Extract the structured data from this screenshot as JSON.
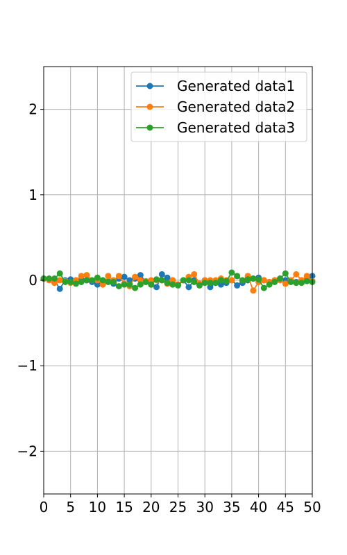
{
  "chart_data": {
    "type": "line",
    "title": "",
    "xlabel": "",
    "ylabel": "",
    "xlim": [
      0,
      50
    ],
    "ylim": [
      -2.5,
      2.5
    ],
    "xticks": [
      0,
      5,
      10,
      15,
      20,
      25,
      30,
      35,
      40,
      45,
      50
    ],
    "xtick_labels": [
      "0",
      "5",
      "10",
      "15",
      "20",
      "25",
      "30",
      "35",
      "40",
      "45",
      "50"
    ],
    "yticks": [
      -2,
      -1,
      0,
      1,
      2
    ],
    "ytick_labels": [
      "−2",
      "−1",
      "0",
      "1",
      "2"
    ],
    "grid": true,
    "legend_position": "top-right",
    "x": [
      0,
      1,
      2,
      3,
      4,
      5,
      6,
      7,
      8,
      9,
      10,
      11,
      12,
      13,
      14,
      15,
      16,
      17,
      18,
      19,
      20,
      21,
      22,
      23,
      24,
      25,
      26,
      27,
      28,
      29,
      30,
      31,
      32,
      33,
      34,
      35,
      36,
      37,
      38,
      39,
      40,
      41,
      42,
      43,
      44,
      45,
      46,
      47,
      48,
      49,
      50
    ],
    "series": [
      {
        "name": "Generated data1",
        "color": "#1f77b4",
        "values": [
          0.02,
          0.01,
          0.0,
          -0.1,
          0.0,
          0.01,
          0.0,
          0.01,
          0.0,
          -0.02,
          -0.05,
          0.0,
          -0.01,
          -0.04,
          0.02,
          0.04,
          0.0,
          0.02,
          0.06,
          -0.02,
          -0.05,
          -0.08,
          0.07,
          0.03,
          0.0,
          -0.05,
          0.0,
          -0.08,
          0.0,
          -0.05,
          0.0,
          -0.08,
          -0.03,
          -0.05,
          -0.03,
          0.0,
          -0.06,
          -0.03,
          0.0,
          0.02,
          0.03,
          0.0,
          -0.02,
          0.0,
          0.02,
          0.0,
          -0.01,
          -0.02,
          0.0,
          0.0,
          0.05
        ]
      },
      {
        "name": "Generated data2",
        "color": "#ff7f0e",
        "values": [
          0.02,
          0.0,
          -0.03,
          0.0,
          -0.01,
          -0.03,
          0.0,
          0.05,
          0.06,
          0.0,
          0.0,
          -0.05,
          0.05,
          0.0,
          0.05,
          -0.04,
          -0.07,
          0.04,
          0.0,
          -0.01,
          0.0,
          0.0,
          0.0,
          -0.04,
          0.0,
          -0.05,
          0.0,
          0.04,
          0.07,
          -0.04,
          0.0,
          0.0,
          0.0,
          0.02,
          0.0,
          0.0,
          0.05,
          0.0,
          0.05,
          -0.12,
          -0.02,
          0.0,
          -0.02,
          0.0,
          0.0,
          -0.04,
          0.0,
          0.07,
          0.0,
          0.05,
          -0.01
        ]
      },
      {
        "name": "Generated data3",
        "color": "#2ca02c",
        "values": [
          0.02,
          0.02,
          0.02,
          0.08,
          -0.02,
          -0.02,
          -0.04,
          -0.02,
          0.0,
          0.0,
          0.03,
          0.0,
          -0.02,
          -0.02,
          -0.07,
          -0.05,
          -0.05,
          -0.09,
          -0.05,
          -0.02,
          -0.05,
          0.01,
          0.0,
          -0.03,
          -0.05,
          -0.06,
          0.0,
          0.0,
          -0.02,
          -0.06,
          -0.03,
          -0.03,
          -0.03,
          0.0,
          -0.01,
          0.09,
          0.05,
          0.0,
          0.01,
          0.02,
          0.01,
          -0.09,
          -0.05,
          -0.02,
          0.02,
          0.08,
          -0.02,
          -0.03,
          -0.03,
          -0.01,
          -0.02
        ]
      }
    ]
  }
}
